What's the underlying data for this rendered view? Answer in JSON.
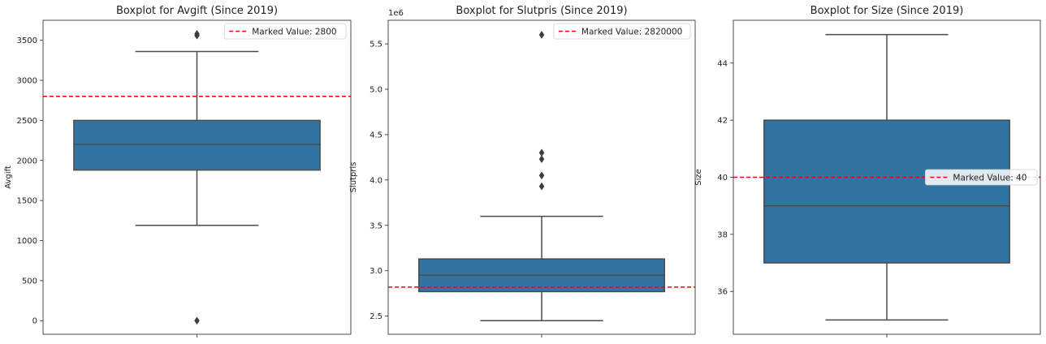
{
  "chart_data": [
    {
      "type": "box",
      "title": "Boxplot for Avgift (Since 2019)",
      "ylabel": "Avgift",
      "ylim": [
        -170,
        3750
      ],
      "yticks": [
        0,
        500,
        1000,
        1500,
        2000,
        2500,
        3000,
        3500
      ],
      "tick_labels": [
        "0",
        "500",
        "1000",
        "1500",
        "2000",
        "2500",
        "3000",
        "3500"
      ],
      "offset_label": "",
      "box": {
        "whisker_low": 1190,
        "q1": 1880,
        "median": 2200,
        "q3": 2500,
        "whisker_high": 3360
      },
      "outliers": [
        3560,
        3580,
        0
      ],
      "marked_value": 2800,
      "legend_label": "Marked Value: 2800",
      "legend_position": "upper right",
      "box_color": "#3274a1",
      "marker_color": "#ff0000"
    },
    {
      "type": "box",
      "title": "Boxplot for Slutpris (Since 2019)",
      "ylabel": "Slutpris",
      "ylim": [
        2300000,
        5760000
      ],
      "yticks": [
        2500000,
        3000000,
        3500000,
        4000000,
        4500000,
        5000000,
        5500000
      ],
      "tick_labels": [
        "2.5",
        "3.0",
        "3.5",
        "4.0",
        "4.5",
        "5.0",
        "5.5"
      ],
      "offset_label": "1e6",
      "box": {
        "whisker_low": 2450000,
        "q1": 2770000,
        "median": 2950000,
        "q3": 3130000,
        "whisker_high": 3600000
      },
      "outliers": [
        5600000,
        4300000,
        4230000,
        4050000,
        3930000
      ],
      "marked_value": 2820000,
      "legend_label": "Marked Value: 2820000",
      "legend_position": "upper right",
      "box_color": "#3274a1",
      "marker_color": "#ff0000"
    },
    {
      "type": "box",
      "title": "Boxplot for Size (Since 2019)",
      "ylabel": "Size",
      "ylim": [
        34.5,
        45.5
      ],
      "yticks": [
        36,
        38,
        40,
        42,
        44
      ],
      "tick_labels": [
        "36",
        "38",
        "40",
        "42",
        "44"
      ],
      "offset_label": "",
      "box": {
        "whisker_low": 35,
        "q1": 37,
        "median": 39,
        "q3": 42,
        "whisker_high": 45
      },
      "outliers": [],
      "marked_value": 40,
      "legend_label": "Marked Value: 40",
      "legend_position": "center right",
      "box_color": "#3274a1",
      "marker_color": "#ff0000"
    }
  ]
}
